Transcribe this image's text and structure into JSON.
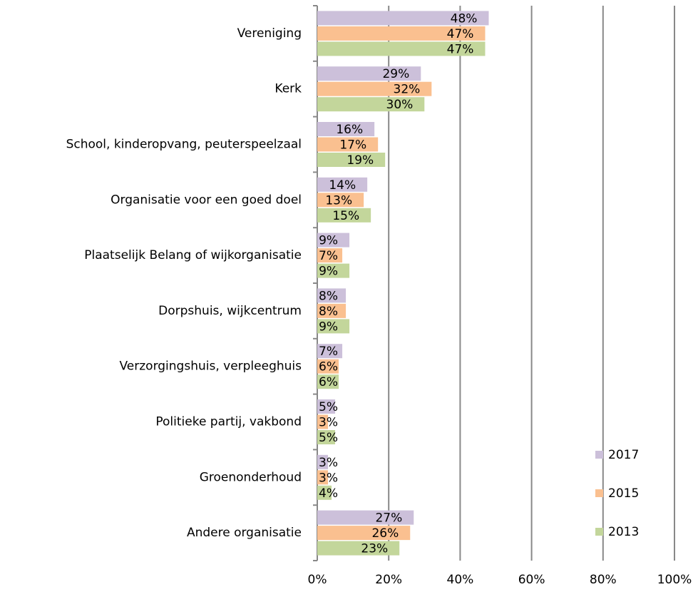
{
  "chart_data": {
    "type": "hbar",
    "categories": [
      "Vereniging",
      "Kerk",
      "School, kinderopvang, peuterspeelzaal",
      "Organisatie voor een goed doel",
      "Plaatselijk Belang of wijkorganisatie",
      "Dorpshuis, wijkcentrum",
      "Verzorgingshuis, verpleeghuis",
      "Politieke partij, vakbond",
      "Groenonderhoud",
      "Andere organisatie"
    ],
    "series": [
      {
        "name": "2017",
        "color": "#ccc0da",
        "values": [
          48,
          29,
          16,
          14,
          9,
          8,
          7,
          5,
          3,
          27
        ],
        "value_labels": [
          "48%",
          "29%",
          "16%",
          "14%",
          "9%",
          "8%",
          "7%",
          "5%",
          "3%",
          "27%"
        ]
      },
      {
        "name": "2015",
        "color": "#fac090",
        "values": [
          47,
          32,
          17,
          13,
          7,
          8,
          6,
          3,
          3,
          26
        ],
        "value_labels": [
          "47%",
          "32%",
          "17%",
          "13%",
          "7%",
          "8%",
          "6%",
          "3%",
          "3%",
          "26%"
        ]
      },
      {
        "name": "2013",
        "color": "#c3d69b",
        "values": [
          47,
          30,
          19,
          15,
          9,
          9,
          6,
          5,
          4,
          23
        ],
        "value_labels": [
          "47%",
          "30%",
          "19%",
          "15%",
          "9%",
          "9%",
          "6%",
          "5%",
          "4%",
          "23%"
        ]
      }
    ],
    "xlim": [
      0,
      100
    ],
    "xticks": [
      {
        "value": 0,
        "label": "0%"
      },
      {
        "value": 20,
        "label": "20%"
      },
      {
        "value": 40,
        "label": "40%"
      },
      {
        "value": 60,
        "label": "60%"
      },
      {
        "value": 80,
        "label": "80%"
      },
      {
        "value": 100,
        "label": "100%"
      }
    ],
    "grid": true,
    "legend": "lower right"
  }
}
